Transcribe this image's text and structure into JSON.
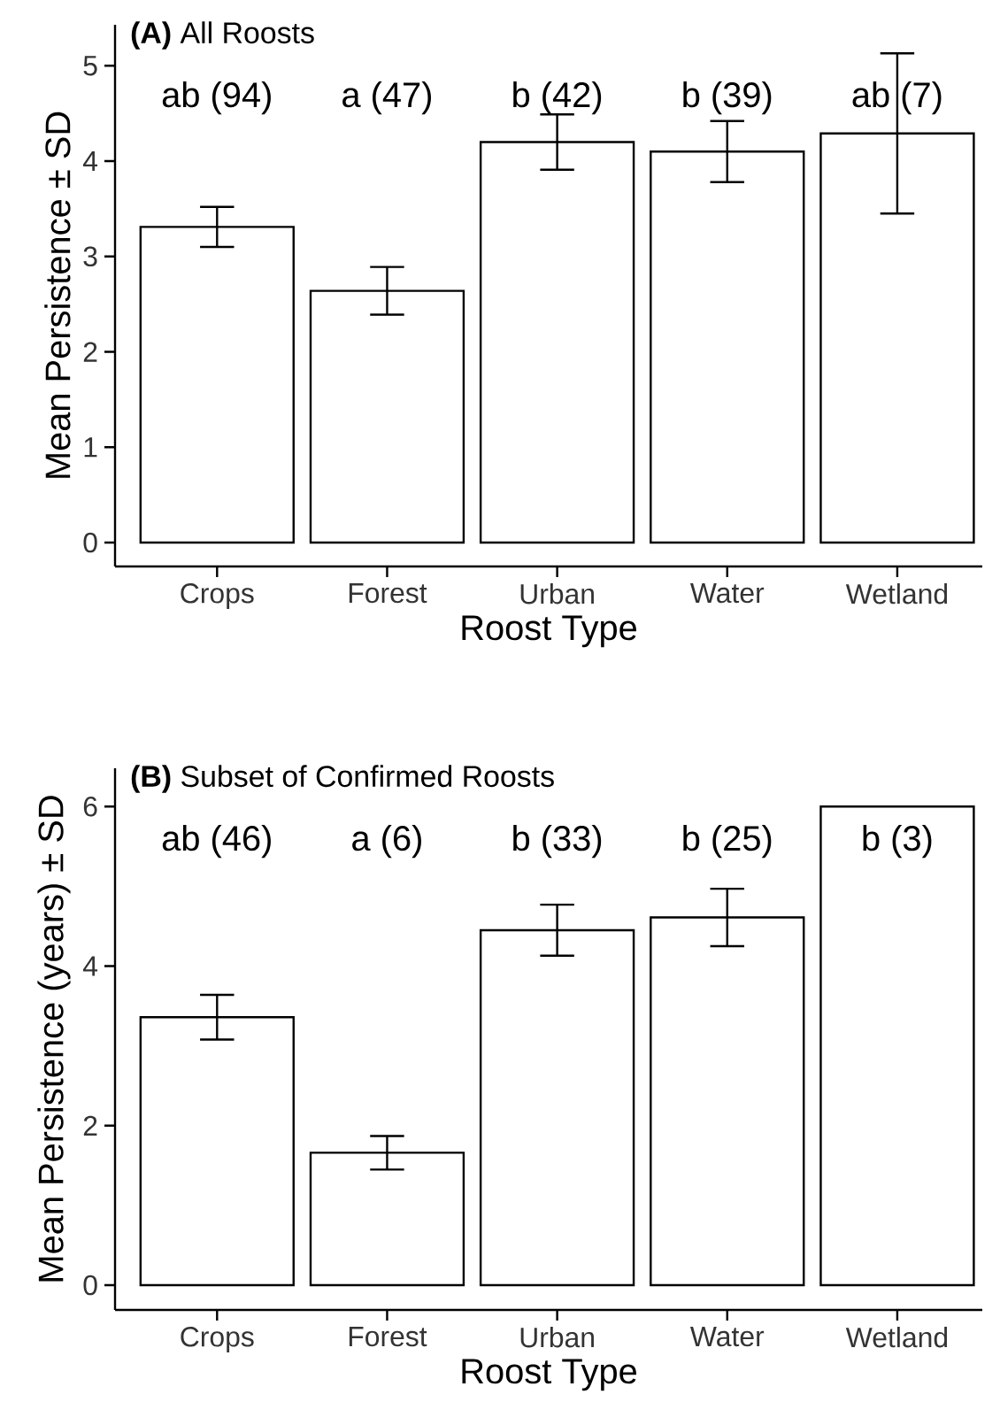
{
  "chart_data": [
    {
      "type": "bar",
      "title": "**(A)** All Roosts",
      "xlabel": "Roost Type",
      "ylabel": "Mean Persistence ± SD",
      "categories": [
        "Crops",
        "Forest",
        "Urban",
        "Water",
        "Wetland"
      ],
      "values": [
        3.31,
        2.64,
        4.2,
        4.1,
        4.29
      ],
      "errors": [
        0.21,
        0.25,
        0.29,
        0.32,
        0.84
      ],
      "color": "#ffffff",
      "ylim": [
        -0.25,
        5.43
      ],
      "yticks": [
        0,
        1,
        2,
        3,
        4,
        5
      ],
      "annotations": [
        "ab (94)",
        "a (47)",
        "b (42)",
        "b (39)",
        "ab (7)"
      ]
    },
    {
      "type": "bar",
      "title": "**(B)** Subset of Confirmed Roosts",
      "xlabel": "Roost Type",
      "ylabel": "Mean Persistence (years) ± SD",
      "categories": [
        "Crops",
        "Forest",
        "Urban",
        "Water",
        "Wetland"
      ],
      "values": [
        3.36,
        1.66,
        4.45,
        4.61,
        6.0
      ],
      "errors": [
        0.28,
        0.21,
        0.32,
        0.36,
        null
      ],
      "color": "#ffffff",
      "ylim": [
        -0.31,
        6.48
      ],
      "yticks": [
        0,
        2,
        4,
        6
      ],
      "annotations": [
        "ab (46)",
        "a  (6)",
        "b (33)",
        "b (25)",
        "b  (3)"
      ]
    }
  ]
}
